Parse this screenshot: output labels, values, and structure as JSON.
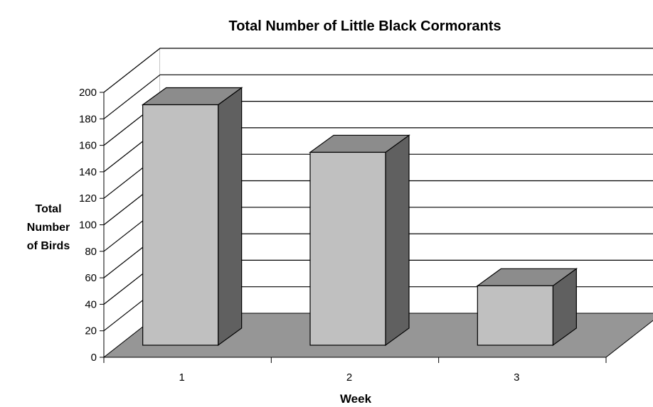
{
  "chart_data": {
    "type": "bar",
    "title": "Total Number of Little Black Cormorants",
    "xlabel": "Week",
    "ylabel": [
      "Total",
      "Number",
      "of Birds"
    ],
    "categories": [
      "1",
      "2",
      "3"
    ],
    "values": [
      182,
      146,
      45
    ],
    "ylim": [
      0,
      200
    ],
    "yticks": [
      "0",
      "20",
      "40",
      "60",
      "80",
      "100",
      "120",
      "140",
      "160",
      "180",
      "200"
    ],
    "grid": true,
    "style": "3d",
    "colors": {
      "bar_front": "#c0c0c0",
      "bar_side": "#606060",
      "bar_top": "#8c8c8c",
      "floor": "#969696",
      "gridline": "#000000"
    }
  }
}
